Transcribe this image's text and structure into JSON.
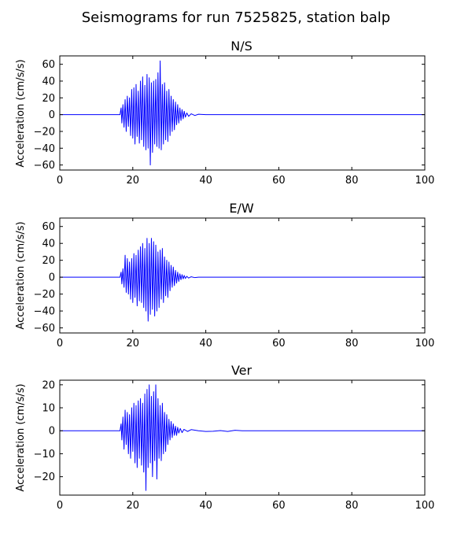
{
  "figure": {
    "title": "Seismograms for run 7525825, station balp"
  },
  "chart_data": [
    {
      "type": "line",
      "title": "N/S",
      "xlabel": "",
      "ylabel": "Acceleration (cm/s/s)",
      "xlim": [
        0,
        100
      ],
      "ylim": [
        -66,
        70
      ],
      "xticks": [
        0,
        20,
        40,
        60,
        80,
        100
      ],
      "yticks": [
        -60,
        -40,
        -20,
        0,
        20,
        40,
        60
      ],
      "grid": false,
      "color": "#0000ff",
      "series": [
        {
          "x": [
            0,
            16.5,
            16.8,
            17.0,
            17.3,
            17.6,
            17.9,
            18.2,
            18.5,
            18.8,
            19.1,
            19.4,
            19.7,
            20.0,
            20.3,
            20.6,
            20.9,
            21.2,
            21.5,
            21.8,
            22.1,
            22.4,
            22.7,
            23.0,
            23.3,
            23.6,
            23.9,
            24.2,
            24.5,
            24.8,
            25.1,
            25.4,
            25.7,
            26.0,
            26.3,
            26.6,
            26.9,
            27.2,
            27.5,
            27.8,
            28.1,
            28.4,
            28.7,
            29.0,
            29.3,
            29.6,
            29.9,
            30.2,
            30.5,
            30.8,
            31.1,
            31.4,
            31.7,
            32.0,
            32.3,
            32.6,
            32.9,
            33.2,
            33.5,
            33.8,
            34.1,
            34.4,
            34.8,
            35.3,
            36.0,
            37.0,
            38.0,
            40.0,
            100
          ],
          "y": [
            0,
            0,
            8,
            -10,
            12,
            -15,
            18,
            -20,
            22,
            -14,
            20,
            -25,
            30,
            -28,
            32,
            -35,
            36,
            -26,
            28,
            -34,
            40,
            -30,
            45,
            -38,
            35,
            -42,
            48,
            -40,
            44,
            -60,
            38,
            -45,
            40,
            -35,
            42,
            -38,
            50,
            -40,
            64,
            -42,
            36,
            -35,
            38,
            -30,
            28,
            -32,
            30,
            -25,
            22,
            -20,
            18,
            -18,
            15,
            -12,
            12,
            -10,
            8,
            -7,
            6,
            -5,
            4,
            -3,
            2,
            -2,
            1,
            -1,
            0.5,
            0,
            0
          ]
        }
      ]
    },
    {
      "type": "line",
      "title": "E/W",
      "xlabel": "",
      "ylabel": "Acceleration (cm/s/s)",
      "xlim": [
        0,
        100
      ],
      "ylim": [
        -66,
        70
      ],
      "xticks": [
        0,
        20,
        40,
        60,
        80,
        100
      ],
      "yticks": [
        -60,
        -40,
        -20,
        0,
        20,
        40,
        60
      ],
      "grid": false,
      "color": "#0000ff",
      "series": [
        {
          "x": [
            0,
            16.5,
            16.8,
            17.0,
            17.3,
            17.6,
            17.9,
            18.2,
            18.5,
            18.8,
            19.1,
            19.4,
            19.7,
            20.0,
            20.3,
            20.6,
            20.9,
            21.2,
            21.5,
            21.8,
            22.1,
            22.4,
            22.7,
            23.0,
            23.3,
            23.6,
            23.9,
            24.2,
            24.5,
            24.8,
            25.1,
            25.4,
            25.7,
            26.0,
            26.3,
            26.6,
            26.9,
            27.2,
            27.5,
            27.8,
            28.1,
            28.4,
            28.7,
            29.0,
            29.3,
            29.6,
            29.9,
            30.2,
            30.5,
            30.8,
            31.1,
            31.4,
            31.7,
            32.0,
            32.3,
            32.6,
            32.9,
            33.2,
            33.5,
            33.8,
            34.1,
            34.4,
            34.8,
            35.3,
            36.0,
            37.0,
            38.0,
            40.0,
            100
          ],
          "y": [
            0,
            0,
            6,
            -8,
            10,
            -12,
            26,
            -18,
            22,
            -20,
            18,
            -26,
            22,
            -30,
            28,
            -24,
            26,
            -34,
            32,
            -28,
            36,
            -30,
            40,
            -36,
            34,
            -40,
            46,
            -52,
            40,
            -44,
            46,
            -38,
            42,
            -46,
            38,
            -40,
            30,
            -36,
            32,
            -26,
            34,
            -30,
            24,
            -22,
            20,
            -24,
            18,
            -16,
            14,
            -12,
            12,
            -10,
            8,
            -7,
            6,
            -5,
            4,
            -3,
            3,
            -2,
            2,
            -1.5,
            1,
            -1,
            0.5,
            -0.5,
            0,
            0,
            0
          ]
        }
      ]
    },
    {
      "type": "line",
      "title": "Ver",
      "xlabel": "",
      "ylabel": "Acceleration (cm/s/s)",
      "xlim": [
        0,
        100
      ],
      "ylim": [
        -28,
        22
      ],
      "xticks": [
        0,
        20,
        40,
        60,
        80,
        100
      ],
      "yticks": [
        -20,
        -10,
        0,
        10,
        20
      ],
      "grid": false,
      "color": "#0000ff",
      "series": [
        {
          "x": [
            0,
            16.5,
            16.8,
            17.0,
            17.3,
            17.6,
            17.9,
            18.2,
            18.5,
            18.8,
            19.1,
            19.4,
            19.7,
            20.0,
            20.3,
            20.6,
            20.9,
            21.2,
            21.5,
            21.8,
            22.1,
            22.4,
            22.7,
            23.0,
            23.3,
            23.6,
            23.9,
            24.2,
            24.5,
            24.8,
            25.1,
            25.4,
            25.7,
            26.0,
            26.3,
            26.6,
            26.9,
            27.2,
            27.5,
            27.8,
            28.1,
            28.4,
            28.7,
            29.0,
            29.3,
            29.6,
            29.9,
            30.2,
            30.5,
            30.8,
            31.1,
            31.4,
            31.7,
            32.0,
            32.3,
            32.6,
            33.0,
            33.5,
            34.0,
            35.0,
            36.0,
            38.0,
            40.0,
            42.0,
            44.0,
            46.0,
            48.0,
            50.0,
            55.0,
            60.0,
            100
          ],
          "y": [
            0,
            0,
            3,
            -4,
            6,
            -8,
            9,
            -6,
            8,
            -10,
            7,
            -12,
            10,
            -9,
            12,
            -14,
            11,
            -16,
            13,
            -12,
            14,
            -15,
            12,
            -18,
            16,
            -26,
            18,
            -16,
            20,
            -14,
            15,
            -20,
            17,
            -13,
            20,
            -21,
            14,
            -12,
            11,
            -13,
            12,
            -10,
            8,
            -9,
            7,
            -6,
            5,
            -4,
            4,
            -3,
            3,
            -2,
            2,
            -2,
            1.5,
            -1,
            1,
            -0.8,
            0.6,
            -0.3,
            0.5,
            0,
            -0.3,
            -0.2,
            0.1,
            -0.3,
            0.2,
            0,
            0,
            0,
            0
          ]
        }
      ]
    }
  ]
}
